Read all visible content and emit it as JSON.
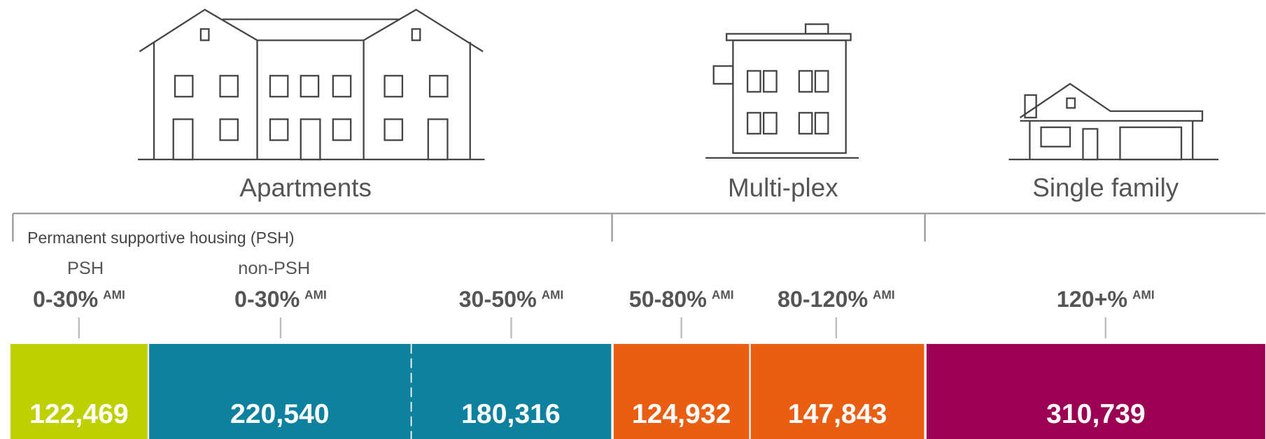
{
  "groups": [
    "Apartments",
    "Multi-plex",
    "Single family"
  ],
  "psh_note": "Permanent supportive housing (PSH)",
  "segments": [
    {
      "sublabel": "PSH",
      "range": "0-30%",
      "unit": "AMI",
      "value": "122,469",
      "color": "#bfd000"
    },
    {
      "sublabel": "non-PSH",
      "range": "0-30%",
      "unit": "AMI",
      "value": "220,540",
      "color": "#0e819e"
    },
    {
      "range": "30-50%",
      "unit": "AMI",
      "value": "180,316",
      "color": "#0e819e"
    },
    {
      "range": "50-80%",
      "unit": "AMI",
      "value": "124,932",
      "color": "#ea5e14"
    },
    {
      "range": "80-120%",
      "unit": "AMI",
      "value": "147,843",
      "color": "#ea5e14"
    },
    {
      "range": "120+%",
      "unit": "AMI",
      "value": "310,739",
      "color": "#9b0052"
    }
  ]
}
